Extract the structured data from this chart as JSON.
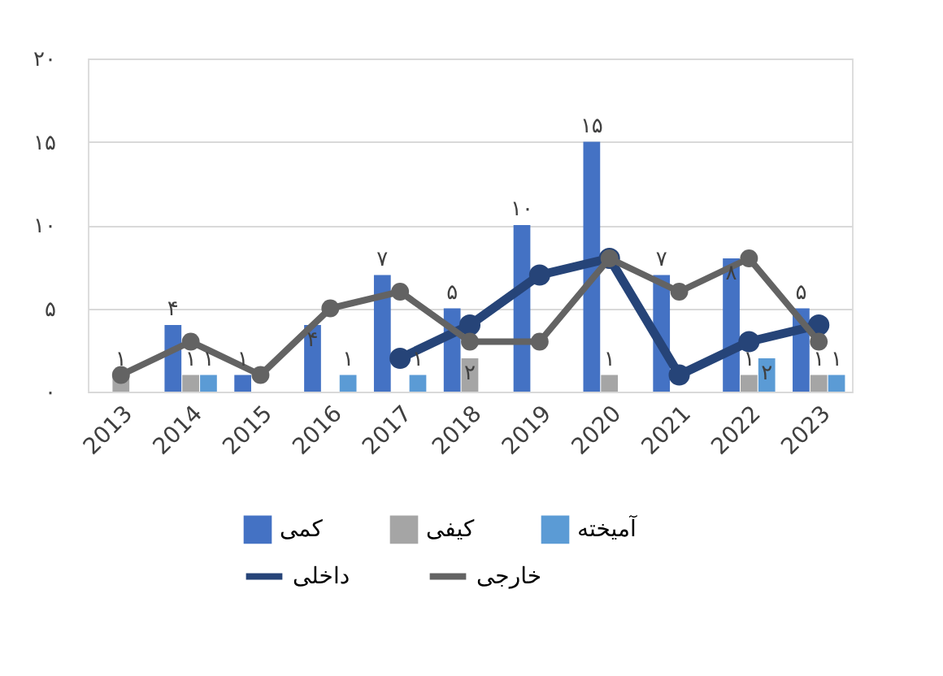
{
  "chart_data": {
    "type": "bar",
    "categories": [
      "2013",
      "2014",
      "2015",
      "2016",
      "2017",
      "2018",
      "2019",
      "2020",
      "2021",
      "2022",
      "2023"
    ],
    "series": [
      {
        "name": "کمی",
        "color": "#4472c4",
        "values": [
          null,
          4,
          1,
          4,
          7,
          5,
          10,
          15,
          7,
          8,
          5
        ],
        "value_labels": [
          null,
          "۴",
          "۱",
          "۴",
          "۷",
          "۵",
          "۱۰",
          "۱۵",
          "۷",
          "۸",
          "۵"
        ]
      },
      {
        "name": "کیفی",
        "color": "#a5a5a5",
        "values": [
          1,
          1,
          null,
          null,
          null,
          2,
          null,
          1,
          null,
          1,
          1
        ],
        "value_labels": [
          "۱",
          "۱",
          null,
          null,
          null,
          "۲",
          null,
          "۱",
          null,
          "۱",
          "۱"
        ]
      },
      {
        "name": "آمیخته",
        "color": "#5b9bd5",
        "values": [
          null,
          1,
          null,
          1,
          1,
          null,
          null,
          null,
          null,
          2,
          1
        ],
        "value_labels": [
          null,
          "۱",
          null,
          "۱",
          "۱",
          null,
          null,
          null,
          null,
          "۲",
          "۱"
        ]
      },
      {
        "name": "داخلی",
        "type": "line",
        "color": "#264478",
        "values": [
          null,
          null,
          null,
          null,
          2,
          4,
          7,
          8,
          1,
          3,
          4
        ]
      },
      {
        "name": "خارجی",
        "type": "line",
        "color": "#636363",
        "values": [
          1,
          3,
          1,
          5,
          6,
          3,
          3,
          8,
          6,
          8,
          3
        ]
      }
    ],
    "ylim": [
      0,
      20
    ],
    "yticks": [
      {
        "value": 0,
        "label": "۰"
      },
      {
        "value": 5,
        "label": "۵"
      },
      {
        "value": 10,
        "label": "۱۰"
      },
      {
        "value": 15,
        "label": "۱۵"
      },
      {
        "value": 20,
        "label": "۲۰"
      }
    ],
    "grid": "y",
    "legend": "bottom",
    "marker": "circle",
    "line_style": "solid"
  }
}
